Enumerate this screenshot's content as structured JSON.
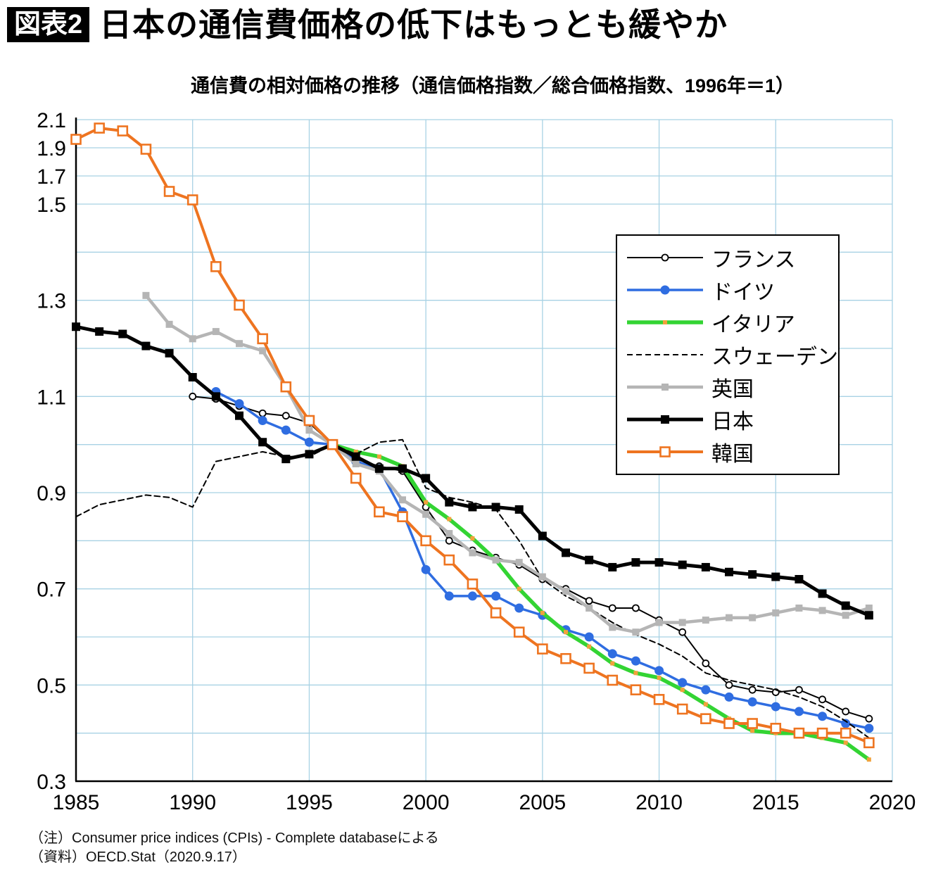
{
  "header": {
    "badge": "図表2",
    "title": "日本の通信費価格の低下はもっとも緩やか"
  },
  "subtitle": "通信費の相対価格の推移（通信価格指数／総合価格指数、1996年＝1）",
  "notes": {
    "line1": "（注）Consumer price indices (CPIs) - Complete databaseによる",
    "line2": "（資料）OECD.Stat（2020.9.17）"
  },
  "colors": {
    "grid": "#a8d2e4",
    "axis": "#000000",
    "france": "#000000",
    "germany": "#2f6de1",
    "italy": "#33d433",
    "sweden": "#000000",
    "uk": "#b5b5b5",
    "japan": "#000000",
    "korea": "#ee7420",
    "italy_marker": "#f2a23c"
  },
  "chart_data": {
    "type": "line",
    "title": "通信費の相対価格の推移（通信価格指数／総合価格指数、1996年＝1）",
    "xlabel": "",
    "ylabel": "",
    "x_min": 1985,
    "x_max": 2020,
    "x_ticks": [
      1985,
      1990,
      1995,
      2000,
      2005,
      2010,
      2015,
      2020
    ],
    "y_ticks": [
      2.1,
      1.9,
      1.7,
      1.5,
      1.3,
      1.1,
      0.9,
      0.7,
      0.5,
      0.3
    ],
    "y_axis": {
      "min": 0.3,
      "break": 1.5,
      "max": 2.1,
      "note": "scale compressed above 1.5"
    },
    "gridlines_h": [
      0.4,
      0.5,
      0.6,
      0.7,
      0.8,
      0.9,
      1.0,
      1.1,
      1.2,
      1.3,
      1.4,
      1.5,
      1.7,
      1.9,
      2.1
    ],
    "years": [
      1985,
      1986,
      1987,
      1988,
      1989,
      1990,
      1991,
      1992,
      1993,
      1994,
      1995,
      1996,
      1997,
      1998,
      1999,
      2000,
      2001,
      2002,
      2003,
      2004,
      2005,
      2006,
      2007,
      2008,
      2009,
      2010,
      2011,
      2012,
      2013,
      2014,
      2015,
      2016,
      2017,
      2018,
      2019
    ],
    "legend_position": "upper-right-inside",
    "series": [
      {
        "key": "france",
        "name": "フランス",
        "color": "#000000",
        "width": 2,
        "marker": "circle-open",
        "marker_size": 9,
        "values": [
          null,
          null,
          null,
          null,
          null,
          1.1,
          1.095,
          1.08,
          1.065,
          1.06,
          1.045,
          1.0,
          0.97,
          0.955,
          0.945,
          0.87,
          0.8,
          0.78,
          0.765,
          0.75,
          0.72,
          0.7,
          0.675,
          0.66,
          0.66,
          0.635,
          0.61,
          0.545,
          0.5,
          0.49,
          0.485,
          0.49,
          0.47,
          0.445,
          0.43
        ]
      },
      {
        "key": "germany",
        "name": "ドイツ",
        "color": "#2f6de1",
        "width": 3.5,
        "marker": "circle",
        "marker_size": 13,
        "values": [
          null,
          null,
          null,
          null,
          null,
          null,
          1.11,
          1.085,
          1.05,
          1.03,
          1.005,
          1.0,
          0.965,
          0.95,
          0.86,
          0.74,
          0.685,
          0.685,
          0.685,
          0.66,
          0.645,
          0.615,
          0.6,
          0.565,
          0.55,
          0.53,
          0.505,
          0.49,
          0.475,
          0.465,
          0.455,
          0.445,
          0.435,
          0.42,
          0.41
        ]
      },
      {
        "key": "italy",
        "name": "イタリア",
        "color": "#33d433",
        "width": 5.5,
        "marker": "square",
        "marker_size": 6,
        "marker_color": "#f2a23c",
        "values": [
          null,
          null,
          null,
          null,
          null,
          null,
          null,
          null,
          null,
          null,
          null,
          1.0,
          0.985,
          0.975,
          0.955,
          0.88,
          0.845,
          0.805,
          0.76,
          0.7,
          0.65,
          0.61,
          0.58,
          0.545,
          0.525,
          0.515,
          0.49,
          0.46,
          0.43,
          0.405,
          0.4,
          0.4,
          0.39,
          0.38,
          0.345
        ]
      },
      {
        "key": "sweden",
        "name": "スウェーデン",
        "color": "#000000",
        "width": 2,
        "marker": "none",
        "marker_size": 0,
        "dash": "8 5",
        "values": [
          0.85,
          0.875,
          0.885,
          0.895,
          0.89,
          0.87,
          0.965,
          0.975,
          0.985,
          0.975,
          0.975,
          1.0,
          0.98,
          1.005,
          1.01,
          0.91,
          0.89,
          0.88,
          0.865,
          0.8,
          0.72,
          0.685,
          0.66,
          0.63,
          0.605,
          0.585,
          0.56,
          0.525,
          0.51,
          0.5,
          0.49,
          0.475,
          0.455,
          0.425,
          0.39
        ]
      },
      {
        "key": "uk",
        "name": "英国",
        "color": "#b5b5b5",
        "width": 4.5,
        "marker": "square",
        "marker_size": 10,
        "values": [
          null,
          null,
          null,
          1.31,
          1.25,
          1.22,
          1.235,
          1.21,
          1.195,
          1.12,
          1.03,
          1.0,
          0.96,
          0.945,
          0.885,
          0.855,
          0.815,
          0.775,
          0.76,
          0.755,
          0.725,
          0.695,
          0.66,
          0.62,
          0.61,
          0.63,
          0.63,
          0.635,
          0.64,
          0.64,
          0.65,
          0.66,
          0.655,
          0.645,
          0.66
        ]
      },
      {
        "key": "japan",
        "name": "日本",
        "color": "#000000",
        "width": 5,
        "marker": "square",
        "marker_size": 12,
        "values": [
          1.245,
          1.235,
          1.23,
          1.205,
          1.19,
          1.14,
          1.1,
          1.06,
          1.005,
          0.97,
          0.98,
          1.0,
          0.975,
          0.95,
          0.95,
          0.93,
          0.88,
          0.87,
          0.87,
          0.865,
          0.81,
          0.775,
          0.76,
          0.745,
          0.755,
          0.755,
          0.75,
          0.745,
          0.735,
          0.73,
          0.725,
          0.72,
          0.69,
          0.665,
          0.645
        ]
      },
      {
        "key": "korea",
        "name": "韓国",
        "color": "#ee7420",
        "width": 4,
        "marker": "square-open",
        "marker_size": 13,
        "values": [
          1.96,
          2.04,
          2.02,
          1.89,
          1.59,
          1.53,
          1.37,
          1.29,
          1.22,
          1.12,
          1.05,
          1.0,
          0.93,
          0.86,
          0.85,
          0.8,
          0.76,
          0.71,
          0.65,
          0.61,
          0.575,
          0.555,
          0.535,
          0.51,
          0.49,
          0.47,
          0.45,
          0.43,
          0.42,
          0.42,
          0.41,
          0.4,
          0.4,
          0.4,
          0.38
        ]
      }
    ]
  }
}
